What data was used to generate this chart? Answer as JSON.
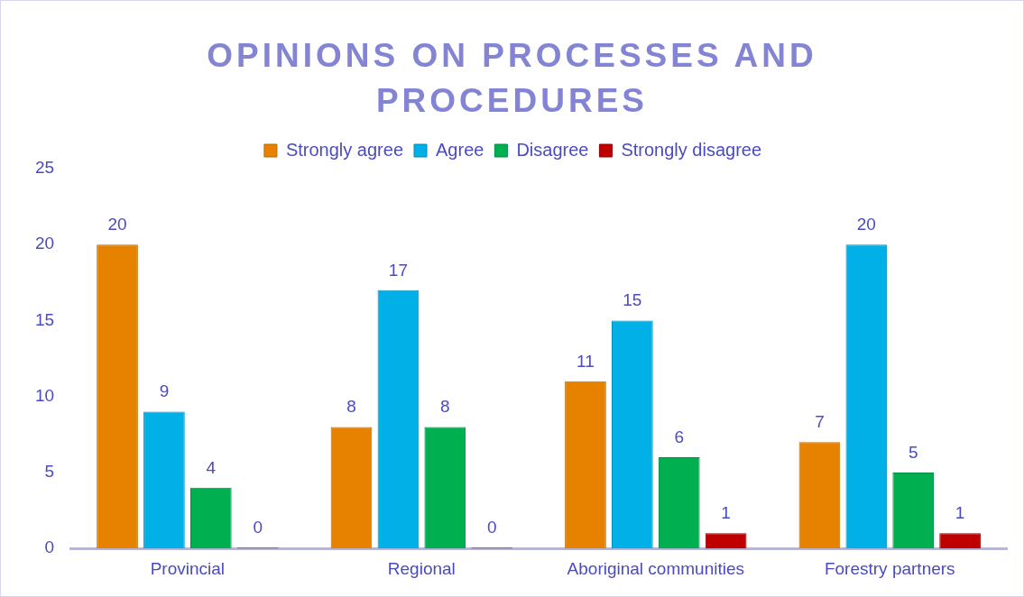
{
  "chart_data": {
    "type": "bar",
    "title": "OPINIONS ON PROCESSES AND PROCEDURES",
    "categories": [
      "Provincial",
      "Regional",
      "Aboriginal communities",
      "Forestry partners"
    ],
    "series": [
      {
        "name": "Strongly agree",
        "color": "#e68200",
        "values": [
          20,
          8,
          11,
          7
        ]
      },
      {
        "name": "Agree",
        "color": "#00b0e6",
        "values": [
          9,
          17,
          15,
          20
        ]
      },
      {
        "name": "Disagree",
        "color": "#00b050",
        "values": [
          4,
          8,
          6,
          5
        ]
      },
      {
        "name": "Strongly disagree",
        "color": "#c00000",
        "values": [
          0,
          0,
          1,
          1
        ]
      }
    ],
    "ylim": [
      0,
      25
    ],
    "yticks": [
      0,
      5,
      10,
      15,
      20,
      25
    ],
    "grid": false,
    "legend": "top",
    "data_labels": true
  }
}
